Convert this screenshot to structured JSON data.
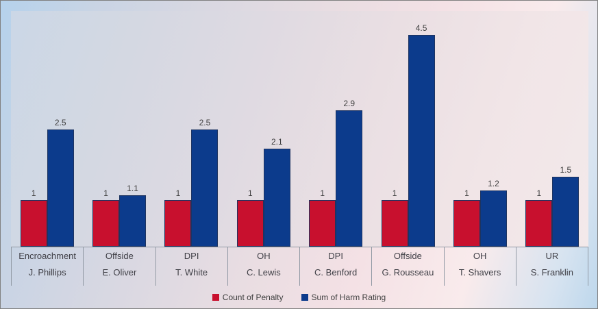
{
  "chart_data": {
    "type": "bar",
    "title": "",
    "categories": [
      {
        "penalty": "Encroachment",
        "player": "J. Phillips"
      },
      {
        "penalty": "Offside",
        "player": "E. Oliver"
      },
      {
        "penalty": "DPI",
        "player": "T. White"
      },
      {
        "penalty": "OH",
        "player": "C. Lewis"
      },
      {
        "penalty": "DPI",
        "player": "C. Benford"
      },
      {
        "penalty": "Offside",
        "player": "G. Rousseau"
      },
      {
        "penalty": "OH",
        "player": "T. Shavers"
      },
      {
        "penalty": "UR",
        "player": "S. Franklin"
      }
    ],
    "series": [
      {
        "name": "Count of Penalty",
        "color": "#C8102E",
        "values": [
          1,
          1,
          1,
          1,
          1,
          1,
          1,
          1
        ]
      },
      {
        "name": "Sum of Harm Rating",
        "color": "#0C3B8C",
        "values": [
          2.5,
          1.1,
          2.5,
          2.1,
          2.9,
          4.5,
          1.2,
          1.5
        ]
      }
    ],
    "ylim": [
      0,
      5
    ],
    "grid": false,
    "legend_position": "bottom",
    "value_labels": true,
    "axis_levels": [
      "penalty",
      "player"
    ]
  },
  "style": {
    "bar_border_color": "#1D3461",
    "axis_line_color": "#9199A4",
    "label_color": "#3F3F3F",
    "background_left_color": "#b5d2ec",
    "background_right_color": "#f9ebec"
  }
}
